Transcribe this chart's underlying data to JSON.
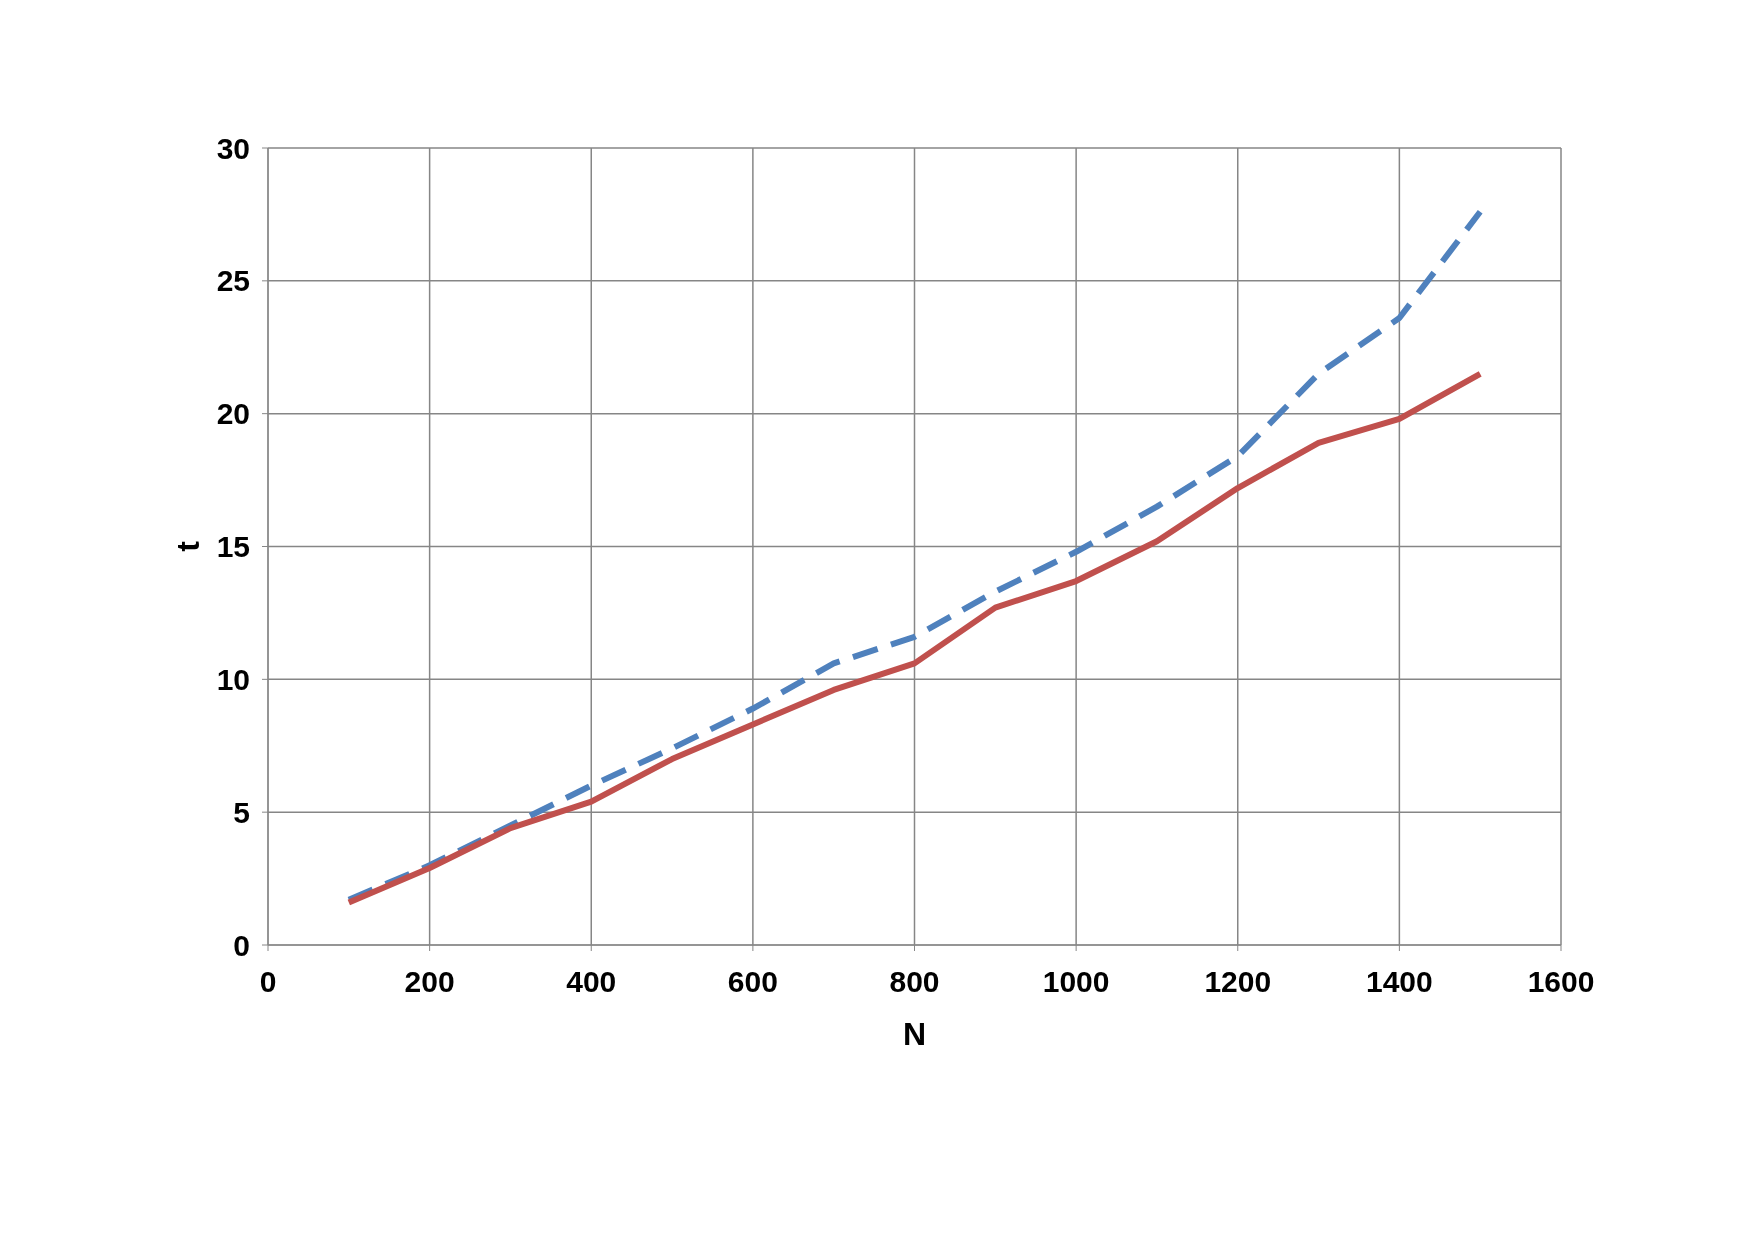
{
  "chart_data": {
    "type": "line",
    "xlabel": "N",
    "ylabel": "t",
    "x": [
      100,
      200,
      300,
      400,
      500,
      600,
      700,
      800,
      900,
      1000,
      1100,
      1200,
      1300,
      1400,
      1500
    ],
    "series": [
      {
        "color": "#4f81bd",
        "line_style": "dashed",
        "values": [
          1.7,
          3.0,
          4.5,
          6.0,
          7.4,
          8.9,
          10.6,
          11.6,
          13.3,
          14.8,
          16.5,
          18.4,
          21.5,
          23.6,
          27.6
        ]
      },
      {
        "color": "#c0504d",
        "line_style": "solid",
        "values": [
          1.6,
          2.9,
          4.4,
          5.4,
          7.0,
          8.3,
          9.6,
          10.6,
          12.7,
          13.7,
          15.2,
          17.2,
          18.9,
          19.8,
          21.5
        ]
      }
    ],
    "xlim": [
      0,
      1600
    ],
    "xticks": [
      0,
      200,
      400,
      600,
      800,
      1000,
      1200,
      1400,
      1600
    ],
    "ylim": [
      0,
      30
    ],
    "yticks": [
      0,
      5,
      10,
      15,
      20,
      25,
      30
    ],
    "grid": true,
    "marker": "none"
  }
}
